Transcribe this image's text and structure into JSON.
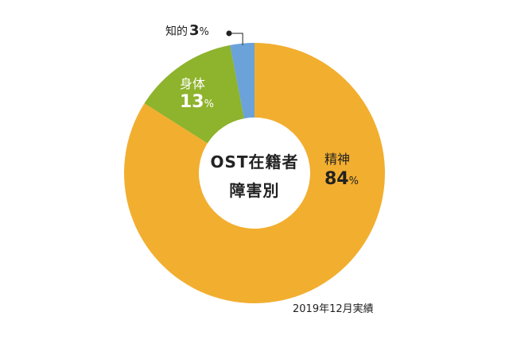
{
  "chart_data": {
    "type": "pie",
    "style": "donut",
    "center_title": [
      "OST在籍者",
      "障害別"
    ],
    "slices": [
      {
        "name": "精神",
        "value": 84,
        "color": "#f2ae2f"
      },
      {
        "name": "身体",
        "value": 13,
        "color": "#8eb32c"
      },
      {
        "name": "知的",
        "value": 3,
        "color": "#6aa2d9"
      }
    ],
    "unit": "%",
    "note": "2019年12月実績"
  }
}
